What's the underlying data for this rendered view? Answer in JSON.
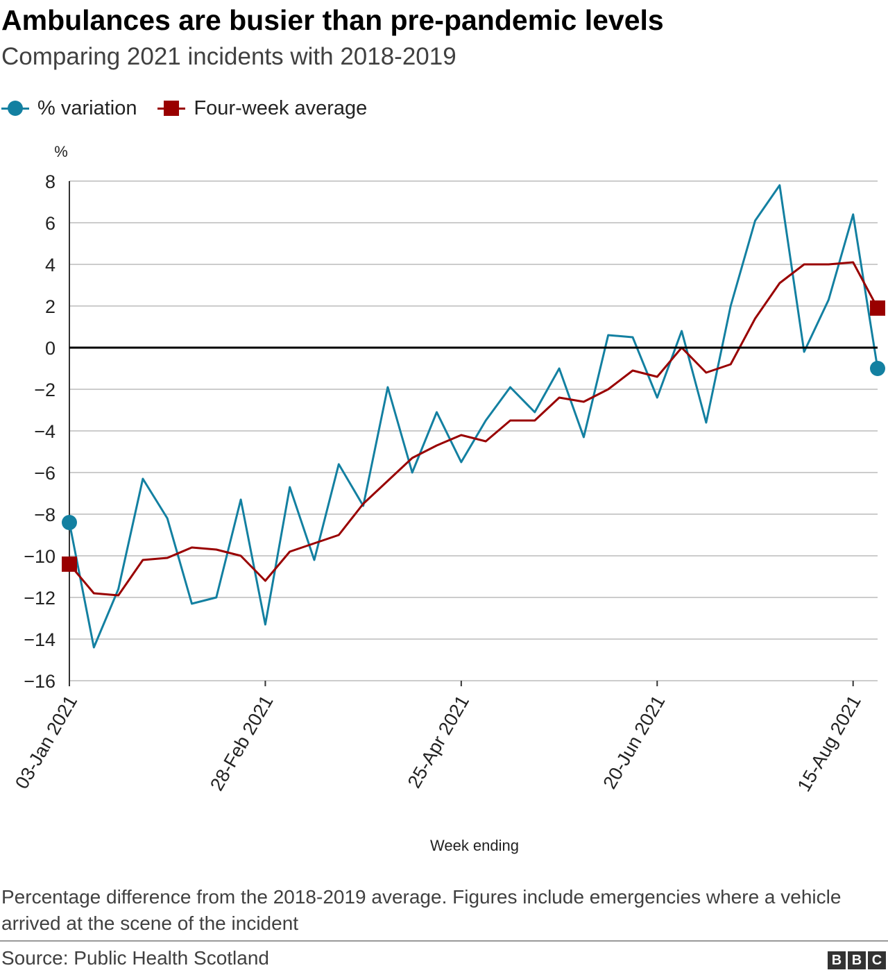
{
  "header": {
    "title": "Ambulances are busier than pre-pandemic levels",
    "subtitle": "Comparing 2021 incidents with 2018-2019"
  },
  "colors": {
    "variation": "#1380A1",
    "average": "#990000",
    "gridline": "#cccccc",
    "zero_line": "#000000"
  },
  "footer": {
    "note": "Percentage difference from the 2018-2019 average. Figures include emergencies where a vehicle arrived at the scene of the incident",
    "source": "Source: Public Health Scotland",
    "logo_letters": [
      "B",
      "B",
      "C"
    ]
  },
  "chart_data": {
    "type": "line",
    "ylabel": "%",
    "xlabel": "Week ending",
    "ylim": [
      -16,
      8
    ],
    "yticks": [
      8,
      6,
      4,
      2,
      0,
      -2,
      -4,
      -6,
      -8,
      -10,
      -12,
      -14,
      -16
    ],
    "ytick_labels": [
      "8",
      "6",
      "4",
      "2",
      "0",
      "−2",
      "−4",
      "−6",
      "−8",
      "−10",
      "−12",
      "−14",
      "−16"
    ],
    "grid": true,
    "legend_position": "top-left",
    "x": [
      "03-Jan 2021",
      "10-Jan 2021",
      "17-Jan 2021",
      "24-Jan 2021",
      "31-Jan 2021",
      "07-Feb 2021",
      "14-Feb 2021",
      "21-Feb 2021",
      "28-Feb 2021",
      "07-Mar 2021",
      "14-Mar 2021",
      "21-Mar 2021",
      "28-Mar 2021",
      "04-Apr 2021",
      "11-Apr 2021",
      "18-Apr 2021",
      "25-Apr 2021",
      "02-May 2021",
      "09-May 2021",
      "16-May 2021",
      "23-May 2021",
      "30-May 2021",
      "06-Jun 2021",
      "13-Jun 2021",
      "20-Jun 2021",
      "27-Jun 2021",
      "04-Jul 2021",
      "11-Jul 2021",
      "18-Jul 2021",
      "25-Jul 2021",
      "01-Aug 2021",
      "08-Aug 2021",
      "15-Aug 2021",
      "22-Aug 2021"
    ],
    "xtick_labels": [
      {
        "index": 0,
        "label": "03-Jan 2021"
      },
      {
        "index": 8,
        "label": "28-Feb 2021"
      },
      {
        "index": 16,
        "label": "25-Apr 2021"
      },
      {
        "index": 24,
        "label": "20-Jun 2021"
      },
      {
        "index": 32,
        "label": "15-Aug 2021"
      }
    ],
    "series": [
      {
        "name": "% variation",
        "marker": "circle",
        "values": [
          -8.4,
          -14.4,
          -11.6,
          -6.3,
          -8.2,
          -12.3,
          -12.0,
          -7.3,
          -13.3,
          -6.7,
          -10.2,
          -5.6,
          -7.6,
          -1.9,
          -6.0,
          -3.1,
          -5.5,
          -3.5,
          -1.9,
          -3.1,
          -1.0,
          -4.3,
          0.6,
          0.5,
          -2.4,
          0.8,
          -3.6,
          2.0,
          6.1,
          7.8,
          -0.2,
          2.3,
          6.4,
          -1.0
        ]
      },
      {
        "name": "Four-week average",
        "marker": "square",
        "values": [
          -10.4,
          -11.8,
          -11.9,
          -10.2,
          -10.1,
          -9.6,
          -9.7,
          -10.0,
          -11.2,
          -9.8,
          -9.4,
          -9.0,
          -7.5,
          -6.4,
          -5.3,
          -4.7,
          -4.2,
          -4.5,
          -3.5,
          -3.5,
          -2.4,
          -2.6,
          -2.0,
          -1.1,
          -1.4,
          0.0,
          -1.2,
          -0.8,
          1.4,
          3.1,
          4.0,
          4.0,
          4.1,
          1.9
        ]
      }
    ]
  }
}
